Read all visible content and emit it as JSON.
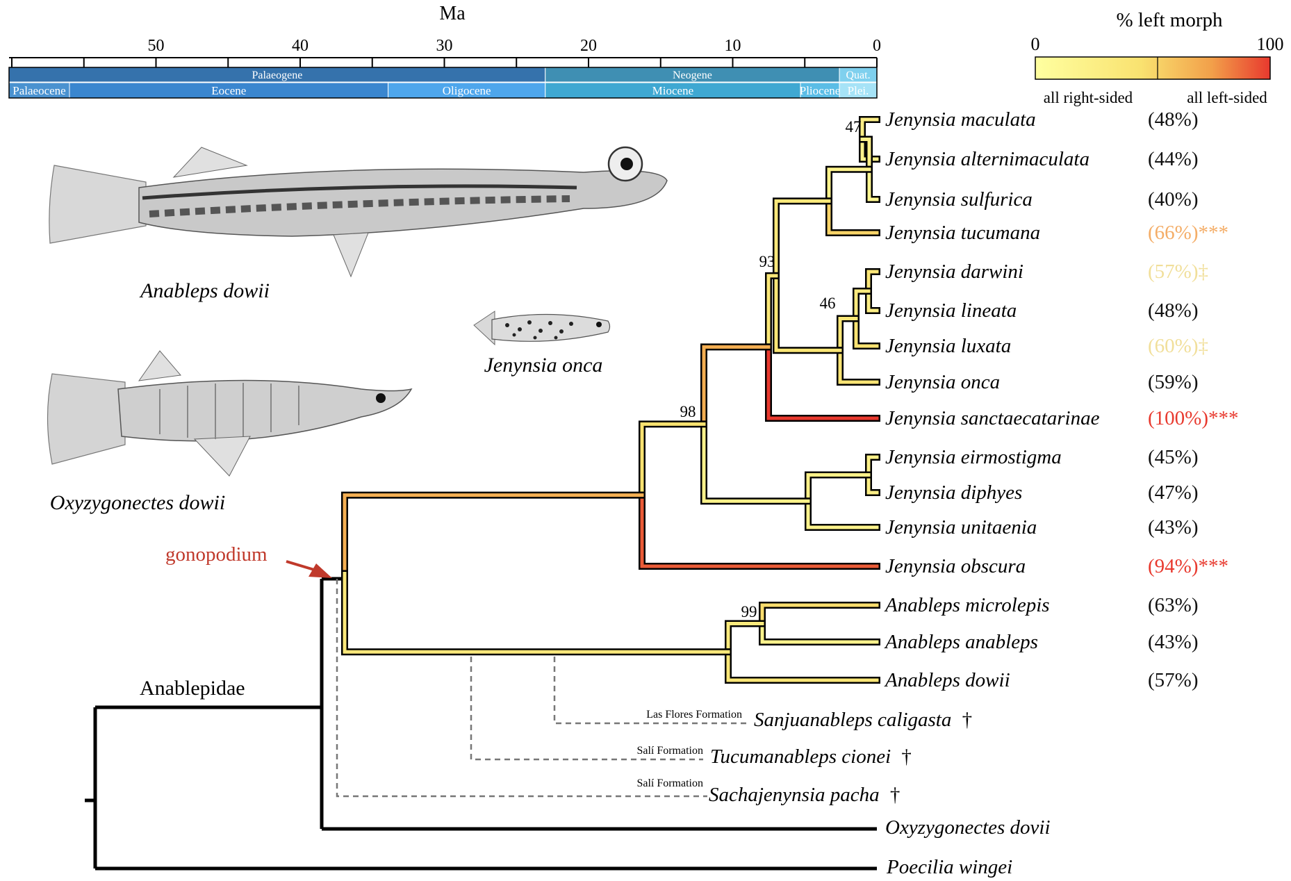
{
  "timescale": {
    "axis_label": "Ma",
    "ticks": [
      {
        "value": 50,
        "label": "50"
      },
      {
        "value": 40,
        "label": "40"
      },
      {
        "value": 30,
        "label": "30"
      },
      {
        "value": 20,
        "label": "20"
      },
      {
        "value": 10,
        "label": "10"
      },
      {
        "value": 0,
        "label": "0"
      }
    ],
    "periods": [
      {
        "label": "Palaeogene",
        "from": 66,
        "to": 23,
        "color": "#3572ac"
      },
      {
        "label": "Neogene",
        "from": 23,
        "to": 2.6,
        "color": "#3f8fb3"
      },
      {
        "label": "Quat.",
        "from": 2.6,
        "to": 0,
        "color": "#7fd0ee"
      }
    ],
    "epochs": [
      {
        "label": "Palaeocene",
        "from": 60.5,
        "to": 56,
        "color": "#4a92d0"
      },
      {
        "label": "Eocene",
        "from": 56,
        "to": 33.9,
        "color": "#3a86cf"
      },
      {
        "label": "Oligocene",
        "from": 33.9,
        "to": 23,
        "color": "#4ea6ec"
      },
      {
        "label": "Miocene",
        "from": 23,
        "to": 5.3,
        "color": "#3fa8d2"
      },
      {
        "label": "Pliocene",
        "from": 5.3,
        "to": 2.6,
        "color": "#5bbde6"
      },
      {
        "label": "Plei.",
        "from": 2.6,
        "to": 0,
        "color": "#a6e3f7"
      }
    ]
  },
  "legend": {
    "title": "% left morph",
    "min_label": "0",
    "max_label": "100",
    "left_caption": "all right-sided",
    "right_caption": "all left-sided",
    "colors": [
      "#ffffa0",
      "#f9e270",
      "#f2a04a",
      "#e8392e"
    ]
  },
  "taxa": [
    {
      "name": "Jenynsia maculata",
      "value_label": "(48%)",
      "percent": 48,
      "label_color": "#111111"
    },
    {
      "name": "Jenynsia alternimaculata",
      "value_label": "(44%)",
      "percent": 44,
      "label_color": "#111111"
    },
    {
      "name": "Jenynsia sulfurica",
      "value_label": "(40%)",
      "percent": 40,
      "label_color": "#111111"
    },
    {
      "name": "Jenynsia tucumana",
      "value_label": "(66%)***",
      "percent": 66,
      "label_color": "#f4ad67"
    },
    {
      "name": "Jenynsia darwini",
      "value_label": "(57%)‡",
      "percent": 57,
      "label_color": "#f1df9a"
    },
    {
      "name": "Jenynsia lineata",
      "value_label": "(48%)",
      "percent": 48,
      "label_color": "#111111"
    },
    {
      "name": "Jenynsia luxata",
      "value_label": "(60%)‡",
      "percent": 60,
      "label_color": "#f1df9a"
    },
    {
      "name": "Jenynsia onca",
      "value_label": "(59%)",
      "percent": 59,
      "label_color": "#111111"
    },
    {
      "name": "Jenynsia sanctaecatarinae",
      "value_label": "(100%)***",
      "percent": 100,
      "label_color": "#e8392e"
    },
    {
      "name": "Jenynsia eirmostigma",
      "value_label": "(45%)",
      "percent": 45,
      "label_color": "#111111"
    },
    {
      "name": "Jenynsia diphyes",
      "value_label": "(47%)",
      "percent": 47,
      "label_color": "#111111"
    },
    {
      "name": "Jenynsia unitaenia",
      "value_label": "(43%)",
      "percent": 43,
      "label_color": "#111111"
    },
    {
      "name": "Jenynsia obscura",
      "value_label": "(94%)***",
      "percent": 94,
      "label_color": "#e8392e"
    },
    {
      "name": "Anableps microlepis",
      "value_label": "(63%)",
      "percent": 63,
      "label_color": "#111111"
    },
    {
      "name": "Anableps anableps",
      "value_label": "(43%)",
      "percent": 43,
      "label_color": "#111111"
    },
    {
      "name": "Anableps dowii",
      "value_label": "(57%)",
      "percent": 57,
      "label_color": "#111111"
    }
  ],
  "fossils": [
    {
      "formation": "Las Flores Formation",
      "name": "Sanjuanableps caligasta",
      "mark": "†"
    },
    {
      "formation": "Salí Formation",
      "name": "Tucumanableps cionei",
      "mark": "†"
    },
    {
      "formation": "Salí Formation",
      "name": "Sachajenynsia pacha",
      "mark": "†"
    }
  ],
  "outgroups": [
    {
      "name": "Oxyzygonectes dovii"
    },
    {
      "name": "Poecilia wingei"
    }
  ],
  "support_values": [
    "47",
    "93",
    "46",
    "98",
    "99"
  ],
  "annotations": {
    "gonopodium": "gonopodium",
    "gonopodium_color": "#c0392b",
    "family": "Anablepidae"
  },
  "illustrations": [
    {
      "caption": "Anableps dowii"
    },
    {
      "caption": "Jenynsia onca"
    },
    {
      "caption": "Oxyzygonectes dowii"
    }
  ]
}
